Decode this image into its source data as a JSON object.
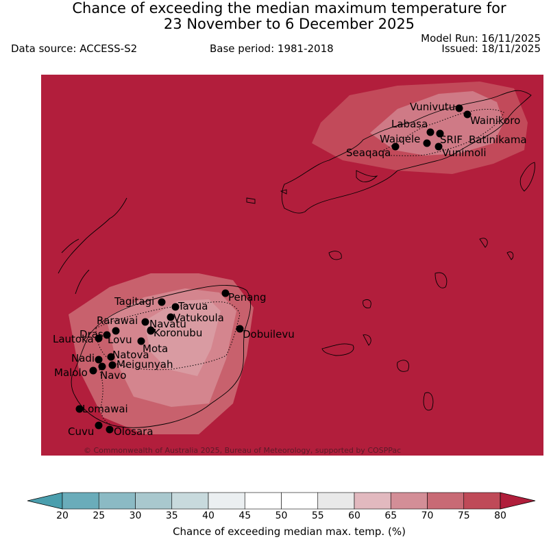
{
  "title_line1": "Chance of exceeding the median maximum temperature for",
  "title_line2": "23 November to 6 December 2025",
  "data_source": "Data source: ACCESS-S2",
  "base_period": "Base period: 1981-2018",
  "model_run": "Model Run: 16/11/2025",
  "issued": "Issued: 18/11/2025",
  "copyright": "© Commonwealth of Australia 2025, Bureau of Meteorology, supported by COSPPac",
  "colorbar": {
    "label": "Chance of exceeding median max. temp. (%)",
    "ticks": [
      "20",
      "25",
      "30",
      "35",
      "40",
      "45",
      "50",
      "55",
      "60",
      "65",
      "70",
      "75",
      "80"
    ],
    "colors": [
      "#6aacba",
      "#8bbac4",
      "#a9c8ce",
      "#c8dadd",
      "#ebeff1",
      "#ffffff",
      "#ffffff",
      "#e9e9e9",
      "#e2b9bf",
      "#d38e97",
      "#c86a75",
      "#bf4a58"
    ],
    "under_color": "#4a9ead",
    "over_color": "#b01e3b"
  },
  "map": {
    "background_color": "#b21e3c",
    "stations": [
      {
        "name": "Vunivutu"
      },
      {
        "name": "Wainikoro"
      },
      {
        "name": "Labasa"
      },
      {
        "name": "SRIF"
      },
      {
        "name": "Batinikama"
      },
      {
        "name": "Waiqele"
      },
      {
        "name": "Vunimoli"
      },
      {
        "name": "Seaqaqa"
      },
      {
        "name": "Tagitagi"
      },
      {
        "name": "Tavua"
      },
      {
        "name": "Penang"
      },
      {
        "name": "Vatukoula"
      },
      {
        "name": "Rarawai"
      },
      {
        "name": "Navatu"
      },
      {
        "name": "Drasa"
      },
      {
        "name": "Koronubu"
      },
      {
        "name": "Lautoka"
      },
      {
        "name": "Lovu"
      },
      {
        "name": "Dobuilevu"
      },
      {
        "name": "Mota"
      },
      {
        "name": "Natova"
      },
      {
        "name": "Nadi"
      },
      {
        "name": "Meigunyah"
      },
      {
        "name": "Malolo"
      },
      {
        "name": "Navo"
      },
      {
        "name": "Lomawai"
      },
      {
        "name": "Cuvu"
      },
      {
        "name": "Olosara"
      }
    ]
  }
}
